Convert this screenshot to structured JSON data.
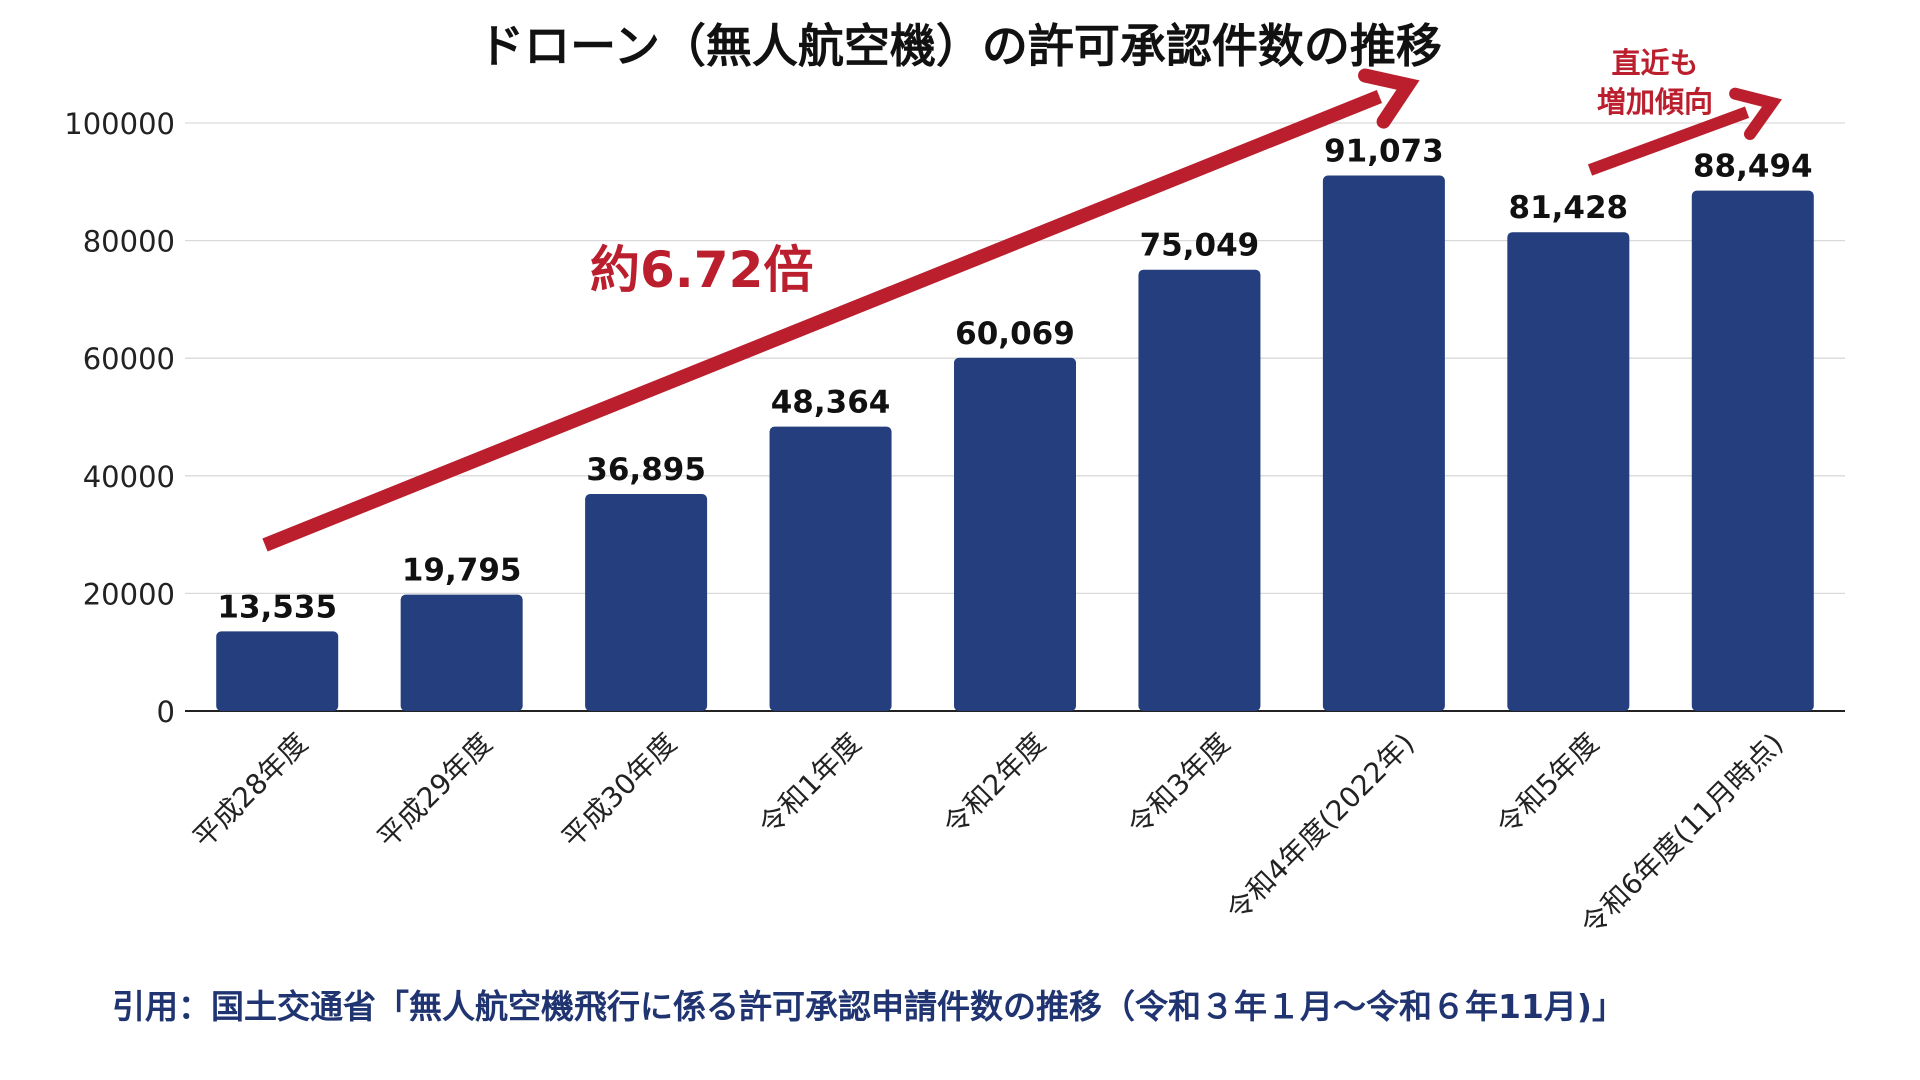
{
  "title": "ドローン（無人航空機）の許可承認件数の推移",
  "source": "引用：国土交通省「無人航空機飛行に係る許可承認申請件数の推移（令和３年１月〜令和６年11月)」",
  "annotations": {
    "growth_label": "約6.72倍",
    "recent_label_line1": "直近も",
    "recent_label_line2": "増加傾向"
  },
  "colors": {
    "bar": "#243e7e",
    "arrow": "#bb1e2d",
    "grid": "#d9d9d9",
    "axis": "#222222"
  },
  "chart_data": {
    "type": "bar",
    "title": "ドローン（無人航空機）の許可承認件数の推移",
    "xlabel": "",
    "ylabel": "",
    "ylim": [
      0,
      100000
    ],
    "yticks": [
      0,
      20000,
      40000,
      60000,
      80000,
      100000
    ],
    "grid": true,
    "categories": [
      "平成28年度",
      "平成29年度",
      "平成30年度",
      "令和1年度",
      "令和2年度",
      "令和3年度",
      "令和4年度(2022年)",
      "令和5年度",
      "令和6年度(11月時点)"
    ],
    "values": [
      13535,
      19795,
      36895,
      48364,
      60069,
      75049,
      91073,
      81428,
      88494
    ],
    "data_labels": [
      "13,535",
      "19,795",
      "36,895",
      "48,364",
      "60,069",
      "75,049",
      "91,073",
      "81,428",
      "88,494"
    ]
  }
}
